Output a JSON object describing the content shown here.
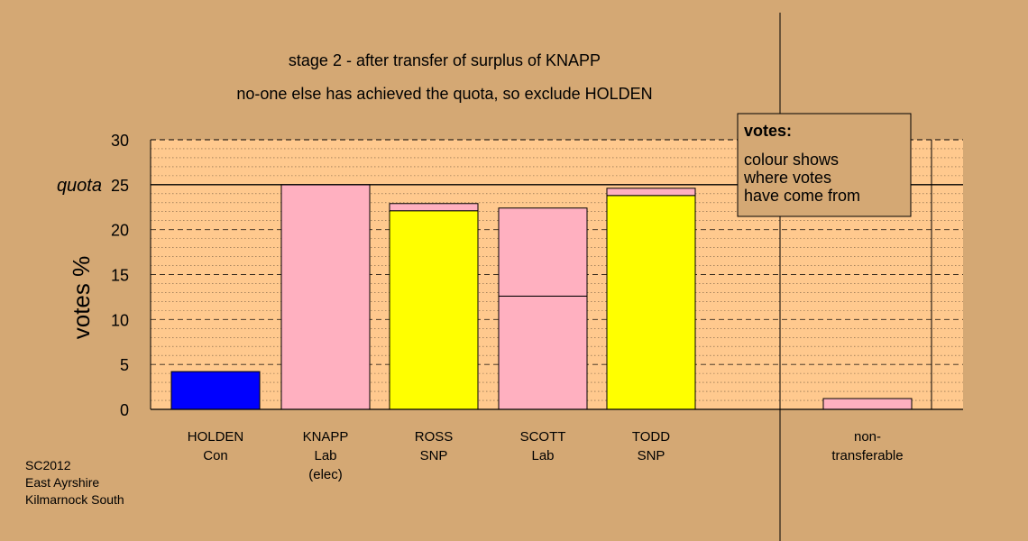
{
  "colors": {
    "background": "#D4A874",
    "plot_background": "#FFC98E",
    "pink": "#FFB0C0",
    "yellow": "#FFFF00",
    "blue": "#0000FF"
  },
  "chart_data": {
    "type": "bar",
    "title": "stage 2 - after transfer of surplus of KNAPP",
    "subtitle": "no-one else has achieved the quota, so exclude HOLDEN",
    "ylabel": "votes %",
    "ylim": [
      0,
      30
    ],
    "yticks": [
      "0",
      "5",
      "10",
      "15",
      "20",
      "25",
      "30"
    ],
    "quota": {
      "label": "quota",
      "value": 25
    },
    "grid": true,
    "categories": [
      {
        "lines": [
          "HOLDEN",
          "Con"
        ]
      },
      {
        "lines": [
          "KNAPP",
          "Lab",
          "(elec)"
        ]
      },
      {
        "lines": [
          "ROSS",
          "SNP"
        ]
      },
      {
        "lines": [
          "SCOTT",
          "Lab"
        ]
      },
      {
        "lines": [
          "TODD",
          "SNP"
        ]
      },
      {
        "lines": [
          "non-",
          "transferable"
        ]
      }
    ],
    "bars": [
      {
        "candidate": "HOLDEN",
        "segments": [
          {
            "value": 4.2,
            "color": "blue"
          }
        ]
      },
      {
        "candidate": "KNAPP",
        "segments": [
          {
            "value": 25.0,
            "color": "pink"
          }
        ]
      },
      {
        "candidate": "ROSS",
        "segments": [
          {
            "value": 22.1,
            "color": "yellow"
          },
          {
            "value": 0.8,
            "color": "pink"
          }
        ]
      },
      {
        "candidate": "SCOTT",
        "segments": [
          {
            "value": 12.6,
            "color": "pink"
          },
          {
            "value": 9.8,
            "color": "pink"
          }
        ]
      },
      {
        "candidate": "TODD",
        "segments": [
          {
            "value": 23.8,
            "color": "yellow"
          },
          {
            "value": 0.8,
            "color": "pink"
          }
        ]
      },
      {
        "candidate": "non-transferable",
        "segments": [
          {
            "value": 1.2,
            "color": "pink"
          }
        ]
      }
    ],
    "legend": {
      "title": "votes:",
      "lines": [
        "colour shows",
        "where votes",
        "have come from"
      ],
      "position": "top-right"
    }
  },
  "footer": {
    "lines": [
      "SC2012",
      "East Ayrshire",
      "Kilmarnock South"
    ]
  }
}
